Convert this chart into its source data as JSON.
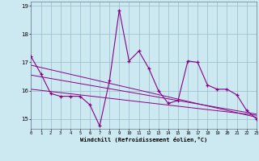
{
  "xlabel": "Windchill (Refroidissement éolien,°C)",
  "background_color": "#cce8f0",
  "grid_color": "#99bbcc",
  "line_color": "#880088",
  "x": [
    0,
    1,
    2,
    3,
    4,
    5,
    6,
    7,
    8,
    9,
    10,
    11,
    12,
    13,
    14,
    15,
    16,
    17,
    18,
    19,
    20,
    21,
    22,
    23
  ],
  "series1": [
    17.2,
    16.6,
    15.9,
    15.8,
    15.8,
    15.8,
    15.5,
    14.75,
    16.35,
    18.85,
    17.05,
    17.4,
    16.8,
    16.0,
    15.55,
    15.65,
    17.05,
    17.0,
    16.2,
    16.05,
    16.05,
    15.85,
    15.3,
    15.0
  ],
  "trend1": [
    16.9,
    16.82,
    16.74,
    16.66,
    16.58,
    16.5,
    16.42,
    16.34,
    16.26,
    16.18,
    16.1,
    16.02,
    15.94,
    15.86,
    15.78,
    15.7,
    15.62,
    15.54,
    15.46,
    15.38,
    15.3,
    15.22,
    15.14,
    15.06
  ],
  "trend2": [
    16.55,
    16.49,
    16.43,
    16.37,
    16.31,
    16.25,
    16.19,
    16.13,
    16.07,
    16.01,
    15.95,
    15.89,
    15.83,
    15.77,
    15.71,
    15.65,
    15.59,
    15.53,
    15.47,
    15.41,
    15.35,
    15.29,
    15.23,
    15.17
  ],
  "trend3": [
    16.05,
    16.01,
    15.97,
    15.93,
    15.89,
    15.85,
    15.81,
    15.77,
    15.73,
    15.69,
    15.65,
    15.61,
    15.57,
    15.53,
    15.49,
    15.45,
    15.41,
    15.37,
    15.33,
    15.29,
    15.25,
    15.21,
    15.17,
    15.13
  ],
  "ylim": [
    14.65,
    19.15
  ],
  "yticks": [
    15,
    16,
    17,
    18,
    19
  ],
  "xlim": [
    0,
    23
  ]
}
